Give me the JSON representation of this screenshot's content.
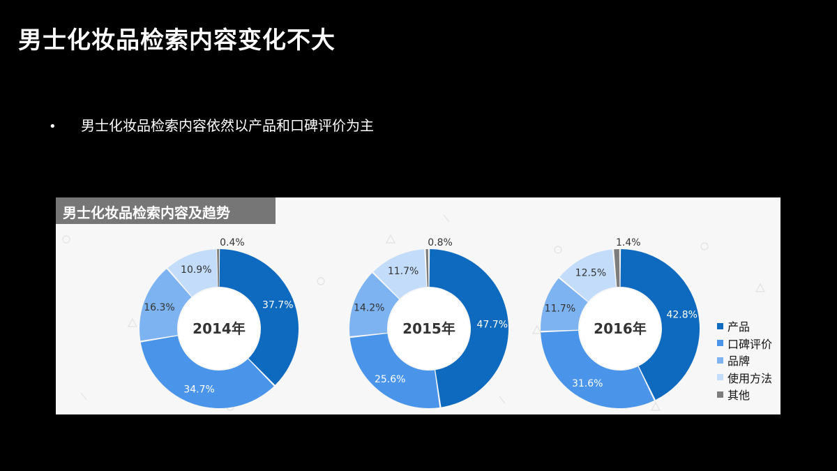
{
  "slide": {
    "title": "男士化妆品检索内容变化不大",
    "bullet": "•",
    "bullet_text": "男士化妆品检索内容依然以产品和口碑评价为主"
  },
  "panel": {
    "header": "男士化妆品检索内容及趋势"
  },
  "colors": {
    "产品": "#0e6abf",
    "口碑评价": "#4a95ea",
    "品牌": "#7db3f1",
    "使用方法": "#c2dcf9",
    "其他": "#7d7d7d"
  },
  "legend": [
    "产品",
    "口碑评价",
    "品牌",
    "使用方法",
    "其他"
  ],
  "chart_data": [
    {
      "type": "pie",
      "title": "2014年",
      "categories": [
        "产品",
        "口碑评价",
        "品牌",
        "使用方法",
        "其他"
      ],
      "values": [
        37.7,
        34.7,
        16.3,
        10.9,
        0.4
      ],
      "labels": [
        "37.7%",
        "34.7%",
        "16.3%",
        "10.9%",
        "0.4%"
      ]
    },
    {
      "type": "pie",
      "title": "2015年",
      "categories": [
        "产品",
        "口碑评价",
        "品牌",
        "使用方法",
        "其他"
      ],
      "values": [
        47.7,
        25.6,
        14.2,
        11.7,
        0.8
      ],
      "labels": [
        "47.7%",
        "25.6%",
        "14.2%",
        "11.7%",
        "0.8%"
      ]
    },
    {
      "type": "pie",
      "title": "2016年",
      "categories": [
        "产品",
        "口碑评价",
        "品牌",
        "使用方法",
        "其他"
      ],
      "values": [
        42.8,
        31.6,
        11.7,
        12.5,
        1.4
      ],
      "labels": [
        "42.8%",
        "31.6%",
        "11.7%",
        "12.5%",
        "1.4%"
      ]
    }
  ]
}
